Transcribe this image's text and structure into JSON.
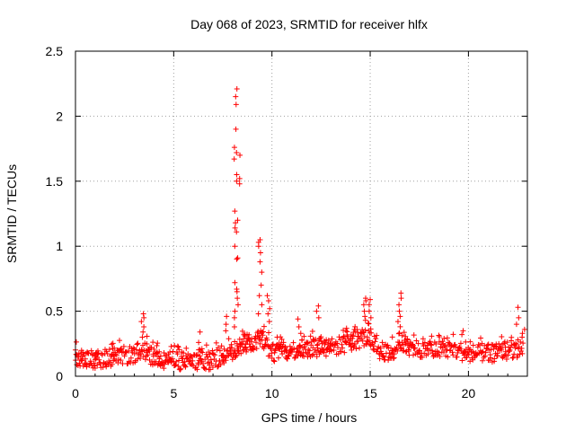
{
  "chart_data": {
    "type": "scatter",
    "title": "Day 068 of 2023, SRMTID for receiver hlfx",
    "xlabel": "GPS time / hours",
    "ylabel": "SRMTID / TECUs",
    "xlim": [
      0,
      23
    ],
    "ylim": [
      0,
      2.5
    ],
    "xticks": [
      "0",
      "5",
      "10",
      "15",
      "20"
    ],
    "xtick_values": [
      0,
      5,
      10,
      15,
      20
    ],
    "yticks": [
      "0",
      "0.5",
      "1",
      "1.5",
      "2",
      "2.5"
    ],
    "ytick_values": [
      0,
      0.5,
      1,
      1.5,
      2,
      2.5
    ],
    "grid": true,
    "marker": "+",
    "series": [
      {
        "name": "SRMTID",
        "color": "#ff0000",
        "baseline_profile": [
          [
            0,
            0.14
          ],
          [
            1,
            0.13
          ],
          [
            2,
            0.15
          ],
          [
            3,
            0.17
          ],
          [
            3.5,
            0.2
          ],
          [
            4,
            0.14
          ],
          [
            5,
            0.12
          ],
          [
            6,
            0.11
          ],
          [
            7,
            0.12
          ],
          [
            7.8,
            0.18
          ],
          [
            8.2,
            0.22
          ],
          [
            9,
            0.26
          ],
          [
            9.5,
            0.3
          ],
          [
            10,
            0.18
          ],
          [
            11,
            0.2
          ],
          [
            12,
            0.22
          ],
          [
            13,
            0.22
          ],
          [
            14,
            0.26
          ],
          [
            14.8,
            0.3
          ],
          [
            15.5,
            0.2
          ],
          [
            16,
            0.17
          ],
          [
            16.5,
            0.26
          ],
          [
            17,
            0.22
          ],
          [
            18,
            0.2
          ],
          [
            19,
            0.21
          ],
          [
            20,
            0.18
          ],
          [
            21,
            0.17
          ],
          [
            22,
            0.2
          ],
          [
            22.8,
            0.22
          ]
        ],
        "spikes": [
          {
            "x": 3.4,
            "y": [
              0.48,
              0.45,
              0.42,
              0.38,
              0.34,
              0.3
            ]
          },
          {
            "x": 6.3,
            "y": [
              0.34,
              0.26
            ]
          },
          {
            "x": 7.7,
            "y": [
              0.46,
              0.4,
              0.35
            ]
          },
          {
            "x": 8.15,
            "y": [
              2.21,
              2.15,
              2.09,
              1.9,
              1.76,
              1.72,
              1.67,
              1.55,
              1.5,
              1.27,
              1.18,
              1.14,
              1.11,
              1.0,
              0.9,
              0.72,
              0.67,
              0.6,
              0.5,
              0.45,
              0.38
            ]
          },
          {
            "x": 8.3,
            "y": [
              1.7,
              1.52,
              1.48,
              1.2,
              0.91,
              0.65,
              0.55
            ]
          },
          {
            "x": 9.4,
            "y": [
              1.05,
              1.03,
              1.0,
              0.95,
              0.88,
              0.8,
              0.7,
              0.62,
              0.55,
              0.48
            ]
          },
          {
            "x": 9.8,
            "y": [
              0.62,
              0.58,
              0.52,
              0.48,
              0.42
            ]
          },
          {
            "x": 11.4,
            "y": [
              0.44,
              0.38,
              0.33
            ]
          },
          {
            "x": 12.3,
            "y": [
              0.54,
              0.5,
              0.45
            ]
          },
          {
            "x": 14.7,
            "y": [
              0.6,
              0.58,
              0.55,
              0.5,
              0.46,
              0.43
            ]
          },
          {
            "x": 15.0,
            "y": [
              0.59,
              0.55,
              0.5,
              0.45
            ]
          },
          {
            "x": 16.5,
            "y": [
              0.64,
              0.6,
              0.55,
              0.5,
              0.46,
              0.42
            ]
          },
          {
            "x": 19.7,
            "y": [
              0.35,
              0.32
            ]
          },
          {
            "x": 22.5,
            "y": [
              0.53,
              0.45,
              0.4
            ]
          },
          {
            "x": 22.8,
            "y": [
              0.36,
              0.33,
              0.3
            ]
          }
        ]
      }
    ]
  }
}
